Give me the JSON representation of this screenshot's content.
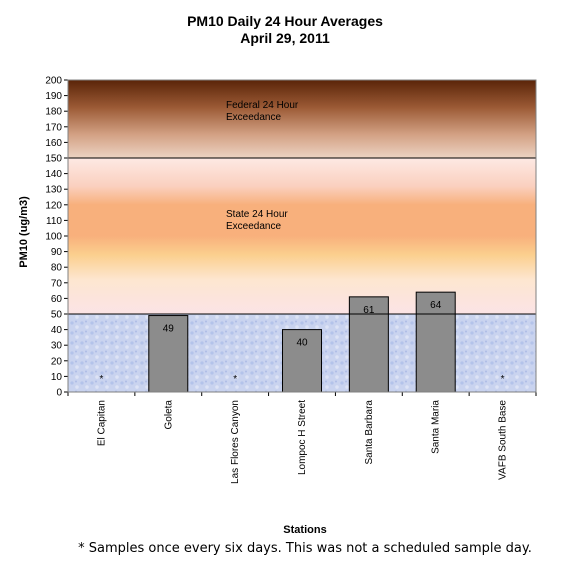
{
  "chart_data": {
    "type": "bar",
    "title": "PM10 Daily 24 Hour Averages",
    "subtitle": "April 29, 2011",
    "xlabel": "Stations",
    "ylabel": "PM10 (ug/m3)",
    "ylim": [
      0,
      200
    ],
    "ytick_step": 10,
    "categories": [
      "El Capitan",
      "Goleta",
      "Las Flores Canyon",
      "Lompoc H Street",
      "Santa Barbara",
      "Santa Maria",
      "VAFB South Base"
    ],
    "values": [
      null,
      49,
      null,
      40,
      61,
      64,
      null
    ],
    "data_labels": [
      "*",
      "49",
      "*",
      "40",
      "61",
      "64",
      "*"
    ],
    "thresholds": [
      {
        "value": 150,
        "label_line1": "Federal 24 Hour",
        "label_line2": "Exceedance"
      },
      {
        "value": 50,
        "label_line1": "State 24 Hour",
        "label_line2": "Exceedance"
      }
    ],
    "footnote": "* Samples once every six days.  This was not a scheduled sample day.",
    "grid": false,
    "colors": {
      "bar": "#8c8c8c",
      "federal_top": "#5a2408",
      "federal_bottom": "#e4c3ae",
      "state_band": "#f8b07c",
      "low_band": "#c8d2ee"
    }
  }
}
